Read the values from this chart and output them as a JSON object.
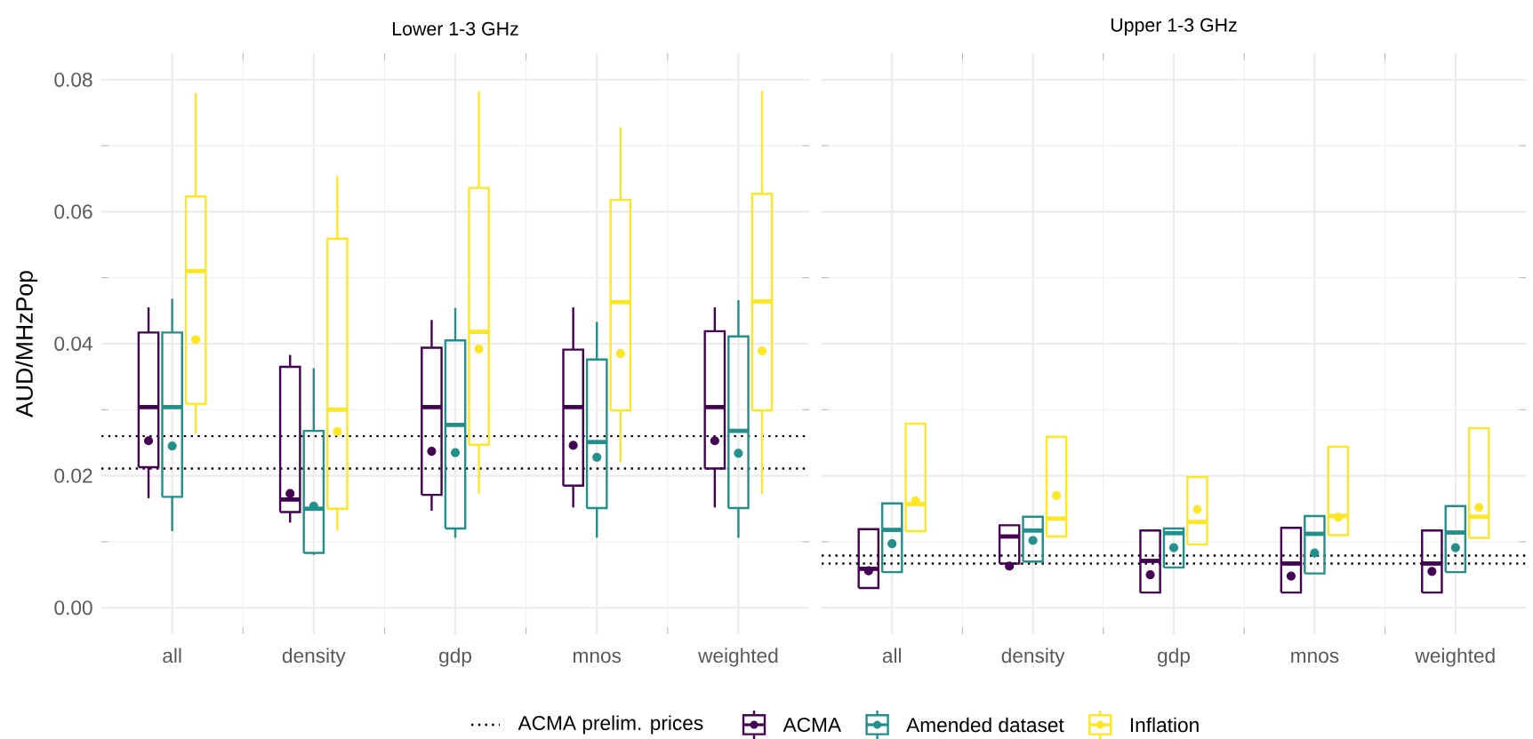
{
  "chart_data": [
    {
      "type": "box",
      "title": "Lower 1-3 GHz",
      "ylabel": "AUD/MHzPop",
      "categories": [
        "all",
        "density",
        "gdp",
        "mnos",
        "weighted"
      ],
      "ylim": [
        0,
        0.08
      ],
      "yticks": [
        {
          "value": 0,
          "label": "0.00"
        },
        {
          "value": 0.02,
          "label": "0.02"
        },
        {
          "value": 0.04,
          "label": "0.04"
        },
        {
          "value": 0.06,
          "label": "0.06"
        },
        {
          "value": 0.08,
          "label": "0.08"
        }
      ],
      "grid": true,
      "legend": "bottom",
      "ref_lines": [
        {
          "axis": "y",
          "value": 0.026,
          "label": "ACMA prelim. prices",
          "line_style": "dotted"
        },
        {
          "axis": "y",
          "value": 0.0211,
          "line_style": "dotted"
        }
      ],
      "series": [
        {
          "name": "ACMA",
          "color": "#440154",
          "boxes": [
            {
              "low": 0.0166,
              "q1": 0.0213,
              "median": 0.0304,
              "q3": 0.0417,
              "high": 0.0455,
              "mean": 0.0253
            },
            {
              "low": 0.0129,
              "q1": 0.0145,
              "median": 0.0164,
              "q3": 0.0365,
              "high": 0.0383,
              "mean": 0.0173
            },
            {
              "low": 0.0147,
              "q1": 0.0171,
              "median": 0.0304,
              "q3": 0.0394,
              "high": 0.0436,
              "mean": 0.0237
            },
            {
              "low": 0.0152,
              "q1": 0.0185,
              "median": 0.0304,
              "q3": 0.0391,
              "high": 0.0455,
              "mean": 0.0246
            },
            {
              "low": 0.0152,
              "q1": 0.0211,
              "median": 0.0304,
              "q3": 0.0419,
              "high": 0.0455,
              "mean": 0.0253
            }
          ]
        },
        {
          "name": "Amended dataset",
          "color": "#21908c",
          "boxes": [
            {
              "low": 0.0116,
              "q1": 0.0168,
              "median": 0.0304,
              "q3": 0.0417,
              "high": 0.0468,
              "mean": 0.0245
            },
            {
              "low": 0.008,
              "q1": 0.0083,
              "median": 0.015,
              "q3": 0.0268,
              "high": 0.0363,
              "mean": 0.0154
            },
            {
              "low": 0.0106,
              "q1": 0.012,
              "median": 0.0277,
              "q3": 0.0405,
              "high": 0.0454,
              "mean": 0.0235
            },
            {
              "low": 0.0106,
              "q1": 0.0151,
              "median": 0.0251,
              "q3": 0.0376,
              "high": 0.0433,
              "mean": 0.0228
            },
            {
              "low": 0.0106,
              "q1": 0.0151,
              "median": 0.0268,
              "q3": 0.0411,
              "high": 0.0466,
              "mean": 0.0234
            }
          ]
        },
        {
          "name": "Inflation",
          "color": "#fde725",
          "boxes": [
            {
              "low": 0.0264,
              "q1": 0.0309,
              "median": 0.051,
              "q3": 0.0623,
              "high": 0.078,
              "mean": 0.0406
            },
            {
              "low": 0.0117,
              "q1": 0.015,
              "median": 0.03,
              "q3": 0.0559,
              "high": 0.0654,
              "mean": 0.0267
            },
            {
              "low": 0.0173,
              "q1": 0.0247,
              "median": 0.0418,
              "q3": 0.0636,
              "high": 0.0782,
              "mean": 0.0392
            },
            {
              "low": 0.022,
              "q1": 0.0299,
              "median": 0.0463,
              "q3": 0.0618,
              "high": 0.0728,
              "mean": 0.0385
            },
            {
              "low": 0.0172,
              "q1": 0.0299,
              "median": 0.0464,
              "q3": 0.0627,
              "high": 0.0783,
              "mean": 0.0389
            }
          ]
        }
      ]
    },
    {
      "type": "box",
      "title": "Upper 1-3 GHz",
      "categories": [
        "all",
        "density",
        "gdp",
        "mnos",
        "weighted"
      ],
      "ylim": [
        0,
        0.08
      ],
      "yticks": [
        {
          "value": 0,
          "label": null
        },
        {
          "value": 0.02,
          "label": null
        },
        {
          "value": 0.04,
          "label": null
        },
        {
          "value": 0.06,
          "label": null
        },
        {
          "value": 0.08,
          "label": null
        }
      ],
      "grid": true,
      "tick_labels": "x",
      "ref_lines": [
        {
          "axis": "y",
          "value": 0.0079,
          "line_style": "dotted"
        },
        {
          "axis": "y",
          "value": 0.0067,
          "line_style": "dotted"
        }
      ],
      "series": [
        {
          "color": "#440154",
          "boxes": [
            {
              "low": 0.003,
              "q1": 0.003,
              "median": 0.0059,
              "q3": 0.0119,
              "high": 0.0119,
              "mean": 0.0056
            },
            {
              "low": 0.0067,
              "q1": 0.0067,
              "median": 0.0108,
              "q3": 0.0125,
              "high": 0.0125,
              "mean": 0.0063
            },
            {
              "low": 0.0023,
              "q1": 0.0023,
              "median": 0.0071,
              "q3": 0.0117,
              "high": 0.0117,
              "mean": 0.005
            },
            {
              "low": 0.0023,
              "q1": 0.0023,
              "median": 0.0067,
              "q3": 0.0121,
              "high": 0.0121,
              "mean": 0.0048
            },
            {
              "low": 0.0023,
              "q1": 0.0023,
              "median": 0.0067,
              "q3": 0.0117,
              "high": 0.0117,
              "mean": 0.0055
            }
          ]
        },
        {
          "color": "#21908c",
          "boxes": [
            {
              "low": 0.0054,
              "q1": 0.0054,
              "median": 0.0118,
              "q3": 0.0158,
              "high": 0.0158,
              "mean": 0.0097
            },
            {
              "low": 0.007,
              "q1": 0.007,
              "median": 0.0117,
              "q3": 0.0138,
              "high": 0.0138,
              "mean": 0.0102
            },
            {
              "low": 0.0061,
              "q1": 0.0061,
              "median": 0.0113,
              "q3": 0.012,
              "high": 0.012,
              "mean": 0.0091
            },
            {
              "low": 0.0052,
              "q1": 0.0052,
              "median": 0.0112,
              "q3": 0.0139,
              "high": 0.0139,
              "mean": 0.0083
            },
            {
              "low": 0.0054,
              "q1": 0.0054,
              "median": 0.0114,
              "q3": 0.0154,
              "high": 0.0154,
              "mean": 0.0091
            }
          ]
        },
        {
          "color": "#fde725",
          "boxes": [
            {
              "low": 0.0116,
              "q1": 0.0116,
              "median": 0.0157,
              "q3": 0.0279,
              "high": 0.0279,
              "mean": 0.0162
            },
            {
              "low": 0.0108,
              "q1": 0.0108,
              "median": 0.0135,
              "q3": 0.0259,
              "high": 0.0259,
              "mean": 0.017
            },
            {
              "low": 0.0096,
              "q1": 0.0096,
              "median": 0.013,
              "q3": 0.0198,
              "high": 0.0198,
              "mean": 0.0149
            },
            {
              "low": 0.011,
              "q1": 0.011,
              "median": 0.0139,
              "q3": 0.0244,
              "high": 0.0244,
              "mean": 0.0137
            },
            {
              "low": 0.0106,
              "q1": 0.0106,
              "median": 0.0138,
              "q3": 0.0272,
              "high": 0.0272,
              "mean": 0.0152
            }
          ]
        }
      ]
    }
  ]
}
